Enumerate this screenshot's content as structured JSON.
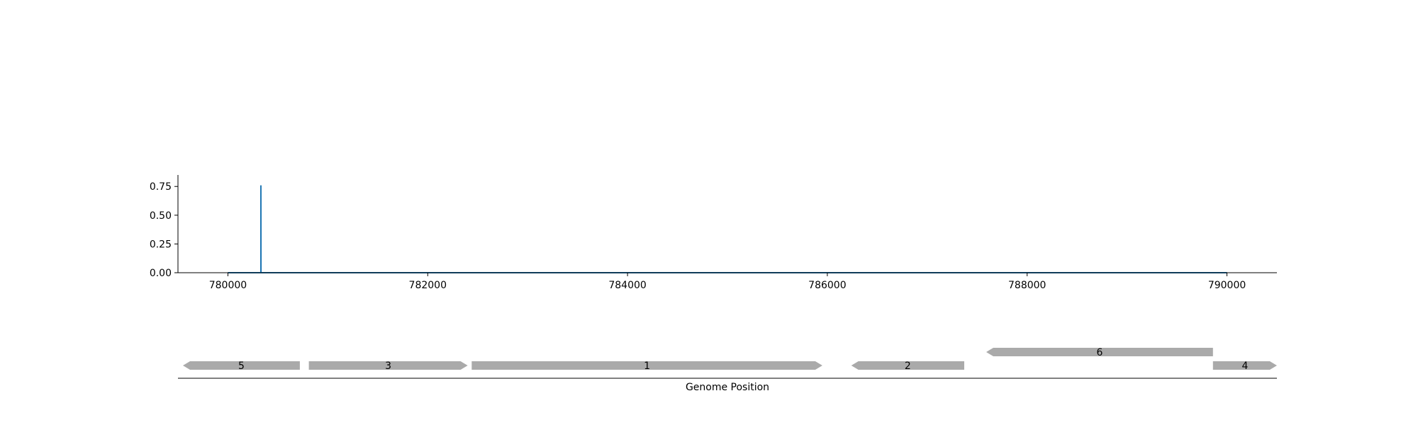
{
  "chart_data": [
    {
      "type": "line",
      "title": "",
      "xlabel": "",
      "ylabel": "",
      "xlim": [
        779500,
        790500
      ],
      "ylim": [
        0,
        0.85
      ],
      "xticks": [
        780000,
        782000,
        784000,
        786000,
        788000,
        790000
      ],
      "yticks": [
        "0.00",
        "0.25",
        "0.50",
        "0.75"
      ],
      "grid": false,
      "series": [
        {
          "color": "#1f77b4",
          "x": [
            780000,
            780329,
            780330,
            780330,
            780331,
            790000
          ],
          "y": [
            0,
            0,
            0,
            0.76,
            0,
            0
          ]
        }
      ]
    },
    {
      "type": "gene-track",
      "xlabel": "Genome Position",
      "xlim": [
        779500,
        790500
      ],
      "feature_color": "#aaaaaa",
      "features": [
        {
          "label": "5",
          "start": 779550,
          "end": 780720,
          "strand": "-",
          "row": 0
        },
        {
          "label": "3",
          "start": 780810,
          "end": 782400,
          "strand": "+",
          "row": 0
        },
        {
          "label": "1",
          "start": 782440,
          "end": 785950,
          "strand": "+",
          "row": 0
        },
        {
          "label": "2",
          "start": 786240,
          "end": 787370,
          "strand": "-",
          "row": 0
        },
        {
          "label": "6",
          "start": 787590,
          "end": 789860,
          "strand": "-",
          "row": 1
        },
        {
          "label": "4",
          "start": 789860,
          "end": 790500,
          "strand": "+",
          "row": 0
        }
      ]
    }
  ]
}
